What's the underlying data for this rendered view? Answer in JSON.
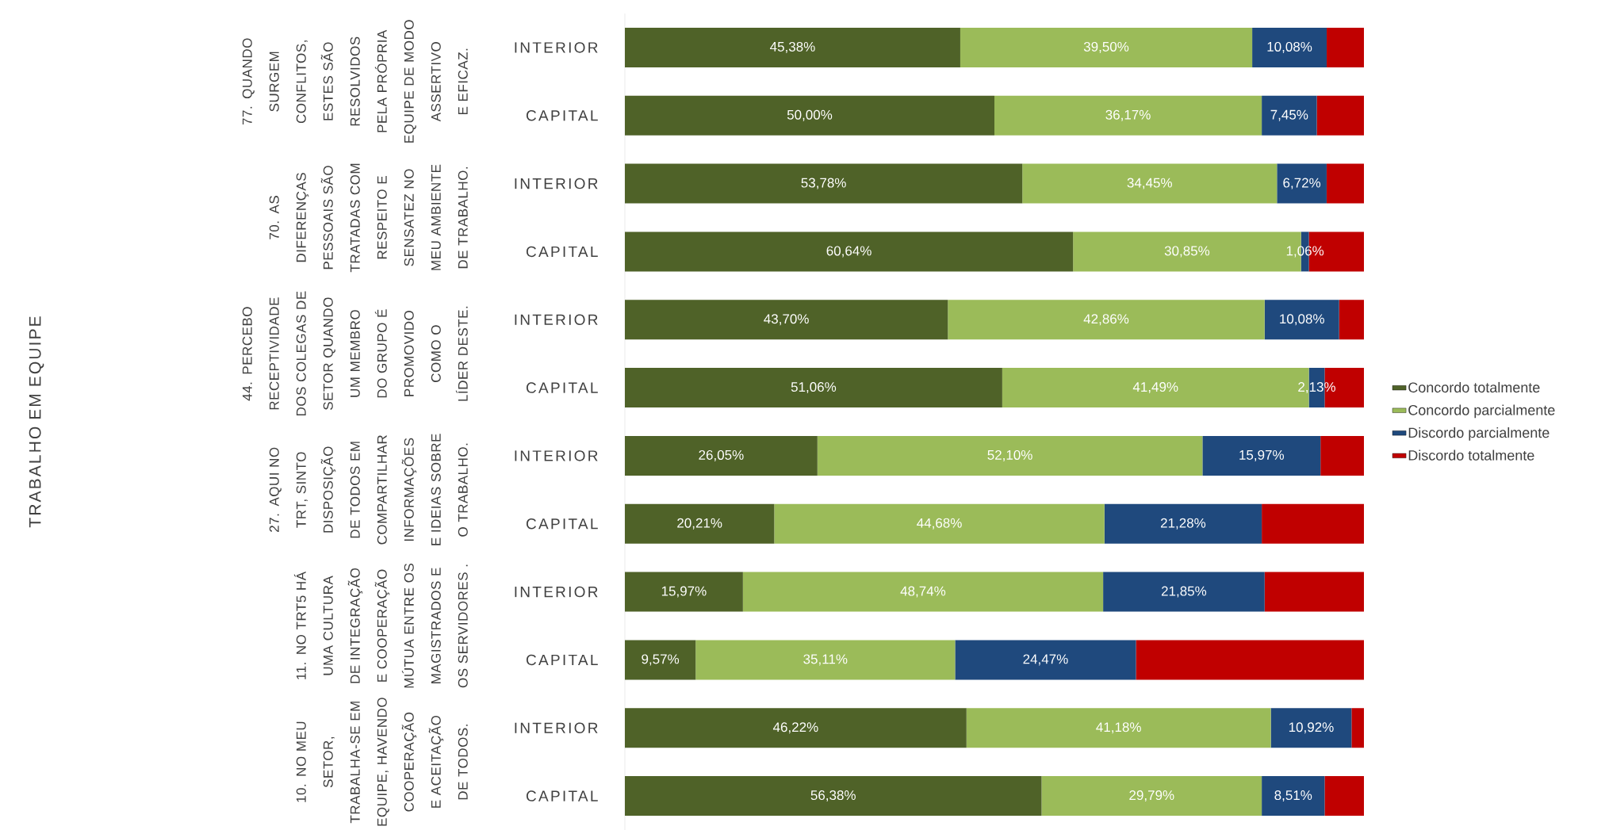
{
  "chart_data": {
    "type": "bar",
    "orientation": "horizontal",
    "stacked": true,
    "legend": "right",
    "categories": [
      "INTERIOR",
      "CAPITAL",
      "INTERIOR",
      "CAPITAL",
      "INTERIOR",
      "CAPITAL",
      "INTERIOR",
      "CAPITAL",
      "INTERIOR",
      "CAPITAL",
      "INTERIOR",
      "CAPITAL"
    ],
    "annotations": [
      "TRABALHO EM EQUIPE",
      "77. QUANDO SURGEM CONFLITOS, ESTES SÃO RESOLVIDOS PELA PRÓPRIA EQUIPE DE MODO ASSERTIVO E EFICAZ.",
      "70. AS DIFERENÇAS PESSOAIS SÃO TRATADAS COM RESPEITO E SENSATEZ NO MEU AMBIENTE DE TRABALHO.",
      "44. PERCEBO RECEPTIVIDADE DOS COLEGAS DE SETOR QUANDO UM MEMBRO DO GRUPO É PROMOVIDO COMO O LÍDER DESTE.",
      "27. AQUI NO TRT, SINTO DISPOSIÇÃO DE TODOS EM COMPARTILHAR INFORMAÇÕES E IDEIAS SOBRE O TRABALHO.",
      "11. NO TRT5 HÁ UMA CULTURA DE INTEGRAÇÃO E COOPERAÇÃO MÚTUA ENTRE OS MAGISTRADOS E OS SERVIDORES .",
      "10. NO MEU SETOR, TRABALHA-SE EM EQUIPE, HAVENDO COOPERAÇÃO E ACEITAÇÃO DE TODOS."
    ],
    "series": [
      {
        "name": "Concordo totalmente",
        "color": "#4f6228",
        "values": [
          45.38,
          50.0,
          53.78,
          60.64,
          43.7,
          51.06,
          26.05,
          20.21,
          15.97,
          9.57,
          46.22,
          56.38
        ],
        "value_labels": [
          "45,38%",
          "50,00%",
          "53,78%",
          "60,64%",
          "43,70%",
          "51,06%",
          "26,05%",
          "20,21%",
          "15,97%",
          "9,57%",
          "46,22%",
          "56,38%"
        ]
      },
      {
        "name": "Concordo parcialmente",
        "color": "#9bbb59",
        "values": [
          39.5,
          36.17,
          34.45,
          30.85,
          42.86,
          41.49,
          52.1,
          44.68,
          48.74,
          35.11,
          41.18,
          29.79
        ],
        "value_labels": [
          "39,50%",
          "36,17%",
          "34,45%",
          "30,85%",
          "42,86%",
          "41,49%",
          "52,10%",
          "44,68%",
          "48,74%",
          "35,11%",
          "41,18%",
          "29,79%"
        ]
      },
      {
        "name": "Discordo parcialmente",
        "color": "#1f497d",
        "values": [
          10.08,
          7.45,
          6.72,
          1.06,
          10.08,
          2.13,
          15.97,
          21.28,
          21.85,
          24.47,
          10.92,
          8.51
        ],
        "value_labels": [
          "10,08%",
          "7,45%",
          "6,72%",
          "1,06%",
          "10,08%",
          "2,13%",
          "15,97%",
          "21,28%",
          "21,85%",
          "24,47%",
          "10,92%",
          "8,51%"
        ]
      },
      {
        "name": "Discordo totalmente",
        "color": "#c00000",
        "values": [
          5.04,
          6.38,
          5.05,
          7.45,
          3.36,
          5.32,
          5.88,
          13.83,
          13.44,
          30.85,
          1.68,
          5.32
        ]
      }
    ]
  }
}
